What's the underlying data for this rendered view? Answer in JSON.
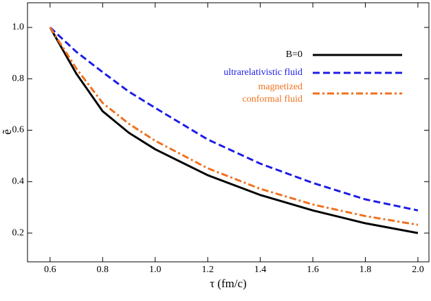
{
  "chart_data": {
    "type": "line",
    "x_label": "τ (fm/c)",
    "y_label": "ẽ",
    "x": [
      0.6,
      0.7,
      0.8,
      0.9,
      1.0,
      1.2,
      1.4,
      1.6,
      1.8,
      2.0
    ],
    "series": [
      {
        "name": "B=0",
        "color": "#000000",
        "dash": "solid",
        "values": [
          1.0,
          0.82,
          0.674,
          0.59,
          0.526,
          0.425,
          0.348,
          0.288,
          0.238,
          0.2
        ]
      },
      {
        "name": "ultrarelativistic fluid",
        "color": "#1c1ce6",
        "dash": "dashed",
        "values": [
          1.0,
          0.905,
          0.826,
          0.75,
          0.687,
          0.564,
          0.47,
          0.395,
          0.331,
          0.288
        ]
      },
      {
        "name": "magnetized\nconformal fluid",
        "color": "#f0701e",
        "dash": "dashdot",
        "values": [
          1.0,
          0.84,
          0.706,
          0.625,
          0.559,
          0.452,
          0.372,
          0.311,
          0.266,
          0.232
        ]
      }
    ],
    "xlim": [
      0.514,
      2.042
    ],
    "ylim": [
      0.088,
      1.096
    ],
    "xticks": [
      0.6,
      0.8,
      {
        "value": 1.0,
        "label": "1.0"
      },
      1.2,
      1.4,
      1.6,
      1.8,
      {
        "value": 2.0,
        "label": "2.0"
      }
    ],
    "yticks": [
      0.2,
      0.4,
      0.6,
      0.8,
      {
        "value": 1.0,
        "label": "1.0"
      }
    ],
    "legend": "upper right"
  }
}
